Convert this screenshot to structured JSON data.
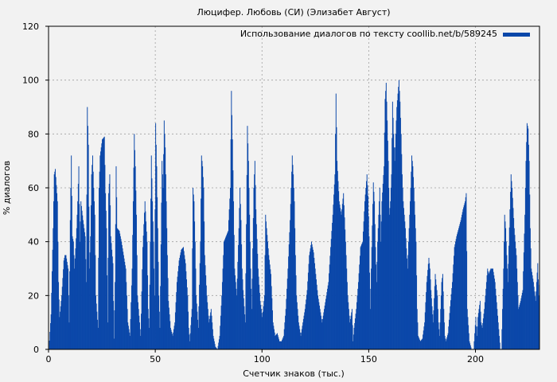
{
  "chart_data": {
    "type": "bar",
    "title": "Люцифер. Любовь (СИ) (Элизабет Август)",
    "xlabel": "Счетчик знаков (тыс.)",
    "ylabel": "% диалогов",
    "xlim": [
      0,
      230
    ],
    "ylim": [
      0,
      120
    ],
    "xticks": [
      0,
      50,
      100,
      150,
      200
    ],
    "yticks": [
      0,
      20,
      40,
      60,
      80,
      100,
      120
    ],
    "xtick_labels": [
      "0",
      "50",
      "100",
      "150",
      "200"
    ],
    "ytick_labels": [
      "0",
      "20",
      "40",
      "60",
      "80",
      "100",
      "120"
    ],
    "grid": true,
    "legend_position": "top-right",
    "series": [
      {
        "name": "Использование диалогов по тексту coollib.net/b/589245",
        "color": "#0a47a9",
        "points": [
          [
            0,
            0
          ],
          [
            1,
            13
          ],
          [
            2,
            45
          ],
          [
            2.5,
            65
          ],
          [
            3,
            67
          ],
          [
            4,
            55
          ],
          [
            4.5,
            25
          ],
          [
            5,
            12
          ],
          [
            6,
            20
          ],
          [
            7,
            33
          ],
          [
            7.5,
            35
          ],
          [
            8,
            35
          ],
          [
            9,
            30
          ],
          [
            9.5,
            10
          ],
          [
            10,
            48
          ],
          [
            10.5,
            72
          ],
          [
            11,
            42
          ],
          [
            11.5,
            40
          ],
          [
            12,
            30
          ],
          [
            13,
            45
          ],
          [
            13.5,
            55
          ],
          [
            14,
            68
          ],
          [
            14.5,
            40
          ],
          [
            15,
            55
          ],
          [
            16,
            48
          ],
          [
            16.5,
            45
          ],
          [
            17,
            42
          ],
          [
            17.5,
            25
          ],
          [
            18,
            90
          ],
          [
            18.5,
            76
          ],
          [
            19,
            30
          ],
          [
            19.5,
            42
          ],
          [
            20,
            65
          ],
          [
            20.5,
            72
          ],
          [
            21,
            60
          ],
          [
            21.5,
            50
          ],
          [
            22,
            20
          ],
          [
            23,
            8
          ],
          [
            23.5,
            60
          ],
          [
            24,
            72
          ],
          [
            25,
            78
          ],
          [
            26,
            79
          ],
          [
            26.5,
            58
          ],
          [
            27,
            45
          ],
          [
            27.5,
            10
          ],
          [
            28,
            58
          ],
          [
            28.5,
            65
          ],
          [
            29,
            42
          ],
          [
            30,
            32
          ],
          [
            30.5,
            4
          ],
          [
            31,
            25
          ],
          [
            31.5,
            68
          ],
          [
            32,
            45
          ],
          [
            33,
            44
          ],
          [
            34,
            40
          ],
          [
            35,
            35
          ],
          [
            36,
            30
          ],
          [
            36.5,
            20
          ],
          [
            37,
            10
          ],
          [
            38,
            5
          ],
          [
            39,
            30
          ],
          [
            40,
            80
          ],
          [
            40.5,
            68
          ],
          [
            41,
            50
          ],
          [
            41.5,
            20
          ],
          [
            42,
            15
          ],
          [
            43,
            5
          ],
          [
            44,
            38
          ],
          [
            45,
            55
          ],
          [
            46,
            40
          ],
          [
            46.5,
            15
          ],
          [
            47,
            8
          ],
          [
            48,
            72
          ],
          [
            48.5,
            55
          ],
          [
            49,
            40
          ],
          [
            49.5,
            20
          ],
          [
            50,
            84
          ],
          [
            50.5,
            68
          ],
          [
            51,
            45
          ],
          [
            51.5,
            20
          ],
          [
            52,
            8
          ],
          [
            53,
            70
          ],
          [
            53.5,
            60
          ],
          [
            54,
            85
          ],
          [
            54.5,
            75
          ],
          [
            55,
            55
          ],
          [
            55.5,
            35
          ],
          [
            56,
            18
          ],
          [
            57,
            8
          ],
          [
            58,
            5
          ],
          [
            59,
            10
          ],
          [
            60,
            25
          ],
          [
            61,
            33
          ],
          [
            62,
            37
          ],
          [
            63,
            38
          ],
          [
            64,
            32
          ],
          [
            65,
            20
          ],
          [
            65.5,
            8
          ],
          [
            66,
            3
          ],
          [
            67,
            15
          ],
          [
            67.5,
            60
          ],
          [
            68,
            55
          ],
          [
            68.5,
            40
          ],
          [
            69,
            20
          ],
          [
            70,
            8
          ],
          [
            71,
            40
          ],
          [
            71.5,
            72
          ],
          [
            72,
            68
          ],
          [
            72.5,
            60
          ],
          [
            73,
            35
          ],
          [
            74,
            20
          ],
          [
            75,
            10
          ],
          [
            76,
            15
          ],
          [
            77,
            5
          ],
          [
            78,
            1
          ],
          [
            79,
            0
          ],
          [
            80,
            5
          ],
          [
            81,
            20
          ],
          [
            82,
            40
          ],
          [
            83,
            42
          ],
          [
            84,
            44
          ],
          [
            85,
            60
          ],
          [
            85.5,
            96
          ],
          [
            86,
            78
          ],
          [
            86.5,
            55
          ],
          [
            87,
            30
          ],
          [
            88,
            20
          ],
          [
            89,
            45
          ],
          [
            89.5,
            60
          ],
          [
            90,
            48
          ],
          [
            90.5,
            30
          ],
          [
            91,
            22
          ],
          [
            92,
            10
          ],
          [
            93,
            83
          ],
          [
            93.5,
            70
          ],
          [
            94,
            50
          ],
          [
            94.5,
            30
          ],
          [
            95,
            15
          ],
          [
            96,
            60
          ],
          [
            96.5,
            70
          ],
          [
            97,
            52
          ],
          [
            98,
            30
          ],
          [
            99,
            18
          ],
          [
            100,
            12
          ],
          [
            101,
            20
          ],
          [
            101.5,
            50
          ],
          [
            102,
            45
          ],
          [
            103,
            35
          ],
          [
            104,
            28
          ],
          [
            105,
            10
          ],
          [
            106,
            5
          ],
          [
            107,
            6
          ],
          [
            108,
            3
          ],
          [
            109,
            3
          ],
          [
            110,
            5
          ],
          [
            111,
            15
          ],
          [
            112,
            30
          ],
          [
            113,
            48
          ],
          [
            114,
            72
          ],
          [
            114.5,
            65
          ],
          [
            115,
            55
          ],
          [
            115.5,
            35
          ],
          [
            116,
            20
          ],
          [
            117,
            10
          ],
          [
            118,
            5
          ],
          [
            119,
            10
          ],
          [
            120,
            15
          ],
          [
            121,
            22
          ],
          [
            122,
            35
          ],
          [
            123,
            40
          ],
          [
            124,
            36
          ],
          [
            125,
            28
          ],
          [
            126,
            20
          ],
          [
            127,
            15
          ],
          [
            128,
            10
          ],
          [
            129,
            15
          ],
          [
            130,
            20
          ],
          [
            131,
            25
          ],
          [
            132,
            38
          ],
          [
            133,
            50
          ],
          [
            134,
            65
          ],
          [
            134.5,
            95
          ],
          [
            135,
            70
          ],
          [
            136,
            55
          ],
          [
            137,
            50
          ],
          [
            138,
            58
          ],
          [
            139,
            40
          ],
          [
            140,
            20
          ],
          [
            141,
            10
          ],
          [
            142,
            15
          ],
          [
            142.5,
            3
          ],
          [
            143,
            8
          ],
          [
            144,
            15
          ],
          [
            145,
            25
          ],
          [
            146,
            38
          ],
          [
            147,
            40
          ],
          [
            148,
            55
          ],
          [
            149,
            65
          ],
          [
            149.5,
            57
          ],
          [
            150,
            42
          ],
          [
            150.5,
            15
          ],
          [
            151,
            30
          ],
          [
            152,
            62
          ],
          [
            152.5,
            55
          ],
          [
            153,
            38
          ],
          [
            153.5,
            25
          ],
          [
            154,
            40
          ],
          [
            155,
            60
          ],
          [
            155.5,
            40
          ],
          [
            156,
            55
          ],
          [
            157,
            68
          ],
          [
            157.5,
            93
          ],
          [
            158,
            99
          ],
          [
            158.5,
            85
          ],
          [
            159,
            70
          ],
          [
            159.5,
            50
          ],
          [
            160,
            55
          ],
          [
            160.5,
            65
          ],
          [
            161,
            92
          ],
          [
            161.5,
            80
          ],
          [
            162,
            70
          ],
          [
            163,
            90
          ],
          [
            163.5,
            95
          ],
          [
            164,
            100
          ],
          [
            164.5,
            92
          ],
          [
            165,
            80
          ],
          [
            165.5,
            65
          ],
          [
            166,
            55
          ],
          [
            167,
            45
          ],
          [
            168,
            30
          ],
          [
            169,
            50
          ],
          [
            169.5,
            60
          ],
          [
            170,
            72
          ],
          [
            170.5,
            68
          ],
          [
            171,
            60
          ],
          [
            172,
            40
          ],
          [
            172.5,
            15
          ],
          [
            173,
            5
          ],
          [
            174,
            3
          ],
          [
            175,
            4
          ],
          [
            176,
            10
          ],
          [
            177,
            25
          ],
          [
            178,
            34
          ],
          [
            178.5,
            30
          ],
          [
            179,
            22
          ],
          [
            180,
            10
          ],
          [
            181,
            28
          ],
          [
            182,
            20
          ],
          [
            182.5,
            10
          ],
          [
            183,
            5
          ],
          [
            184,
            25
          ],
          [
            184.5,
            28
          ],
          [
            185,
            15
          ],
          [
            185.5,
            5
          ],
          [
            186,
            3
          ],
          [
            187,
            6
          ],
          [
            188,
            16
          ],
          [
            189,
            25
          ],
          [
            190,
            38
          ],
          [
            191,
            42
          ],
          [
            192,
            45
          ],
          [
            193,
            48
          ],
          [
            194,
            52
          ],
          [
            195,
            55
          ],
          [
            195.5,
            58
          ],
          [
            196,
            15
          ],
          [
            197,
            3
          ],
          [
            198,
            0
          ],
          [
            199,
            0
          ],
          [
            200,
            12
          ],
          [
            200.5,
            5
          ],
          [
            201,
            12
          ],
          [
            202,
            18
          ],
          [
            202.5,
            10
          ],
          [
            203,
            8
          ],
          [
            204,
            15
          ],
          [
            205,
            25
          ],
          [
            205.5,
            30
          ],
          [
            206,
            28
          ],
          [
            207,
            30
          ],
          [
            208,
            30
          ],
          [
            209,
            25
          ],
          [
            210,
            15
          ],
          [
            211,
            5
          ],
          [
            211.5,
            0
          ],
          [
            212,
            0
          ],
          [
            213,
            30
          ],
          [
            213.5,
            50
          ],
          [
            214,
            45
          ],
          [
            215,
            25
          ],
          [
            216,
            52
          ],
          [
            216.5,
            65
          ],
          [
            217,
            60
          ],
          [
            218,
            45
          ],
          [
            219,
            35
          ],
          [
            219.5,
            25
          ],
          [
            220,
            15
          ],
          [
            221,
            18
          ],
          [
            222,
            22
          ],
          [
            223,
            50
          ],
          [
            223.5,
            70
          ],
          [
            224,
            84
          ],
          [
            224.5,
            82
          ],
          [
            225,
            70
          ],
          [
            225.5,
            45
          ],
          [
            226,
            30
          ],
          [
            227,
            25
          ],
          [
            228,
            18
          ],
          [
            229,
            32
          ],
          [
            229.5,
            20
          ],
          [
            230,
            28
          ]
        ]
      }
    ]
  }
}
